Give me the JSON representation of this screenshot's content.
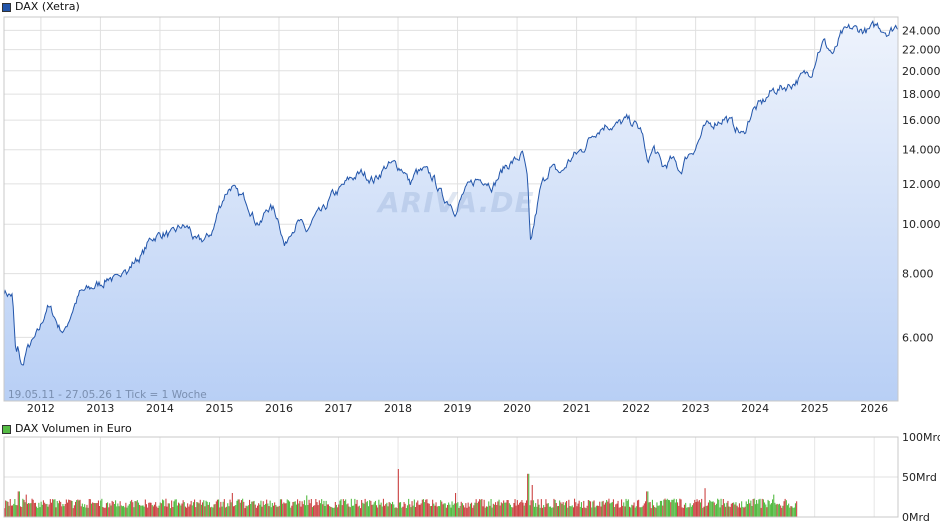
{
  "chart_data": [
    {
      "type": "area",
      "legend": "DAX (Xetra)",
      "range_label": "19.05.11 - 27.05.26   1 Tick = 1 Woche",
      "watermark": "ARIVA.DE",
      "x_ticks": [
        "2012",
        "2013",
        "2014",
        "2015",
        "2016",
        "2017",
        "2018",
        "2019",
        "2020",
        "2021",
        "2022",
        "2023",
        "2024",
        "2025",
        "2026"
      ],
      "y_ticks": [
        {
          "value": 6000,
          "label": "6.000"
        },
        {
          "value": 8000,
          "label": "8.000"
        },
        {
          "value": 10000,
          "label": "10.000"
        },
        {
          "value": 12000,
          "label": "12.000"
        },
        {
          "value": 14000,
          "label": "14.000"
        },
        {
          "value": 16000,
          "label": "16.000"
        },
        {
          "value": 18000,
          "label": "18.000"
        },
        {
          "value": 20000,
          "label": "20.000"
        },
        {
          "value": 22000,
          "label": "22.000"
        },
        {
          "value": 24000,
          "label": "24.000"
        }
      ],
      "y_scale": "log",
      "ylim": [
        4500,
        25500
      ],
      "xlim": [
        2011.38,
        2026.4
      ],
      "grid": true,
      "colors": {
        "line": "#2255aa",
        "fill_top": "#eef3fc",
        "fill_bottom": "#b8cff5",
        "legend": "#2255aa"
      },
      "series": [
        {
          "x": [
            2011.38,
            2011.45,
            2011.52,
            2011.58,
            2011.62,
            2011.68,
            2011.75,
            2011.82,
            2011.88,
            2011.95,
            2012.0,
            2012.1,
            2012.2,
            2012.3,
            2012.4,
            2012.45,
            2012.55,
            2012.65,
            2012.75,
            2012.85,
            2012.95,
            2013.05,
            2013.15,
            2013.3,
            2013.4,
            2013.45,
            2013.55,
            2013.7,
            2013.85,
            2013.95,
            2014.05,
            2014.2,
            2014.35,
            2014.5,
            2014.6,
            2014.8,
            2014.9,
            2015.0,
            2015.1,
            2015.2,
            2015.3,
            2015.45,
            2015.6,
            2015.7,
            2015.8,
            2015.9,
            2016.0,
            2016.1,
            2016.2,
            2016.35,
            2016.45,
            2016.6,
            2016.75,
            2016.9,
            2017.0,
            2017.2,
            2017.4,
            2017.6,
            2017.8,
            2017.95,
            2018.1,
            2018.2,
            2018.3,
            2018.45,
            2018.6,
            2018.75,
            2018.9,
            2018.98,
            2019.1,
            2019.3,
            2019.45,
            2019.6,
            2019.8,
            2019.95,
            2020.1,
            2020.18,
            2020.22,
            2020.3,
            2020.4,
            2020.55,
            2020.75,
            2020.85,
            2020.95,
            2021.1,
            2021.3,
            2021.5,
            2021.65,
            2021.85,
            2021.95,
            2022.1,
            2022.18,
            2022.3,
            2022.45,
            2022.6,
            2022.75,
            2022.85,
            2023.0,
            2023.15,
            2023.35,
            2023.5,
            2023.65,
            2023.8,
            2023.95,
            2024.1,
            2024.3,
            2024.45,
            2024.6,
            2024.8,
            2024.95,
            2025.05,
            2025.15,
            2025.25,
            2025.32,
            2025.45,
            2025.6,
            2025.75,
            2025.9,
            2026.05,
            2026.15,
            2026.25,
            2026.35,
            2026.4
          ],
          "values": [
            7400,
            7300,
            7250,
            5500,
            5700,
            5200,
            5600,
            5800,
            5900,
            6100,
            6300,
            6900,
            6700,
            6300,
            6150,
            6400,
            6900,
            7300,
            7400,
            7500,
            7600,
            7700,
            7900,
            7700,
            8400,
            8050,
            8400,
            8700,
            9400,
            9500,
            9600,
            9500,
            9900,
            9800,
            9200,
            9400,
            9800,
            10800,
            11500,
            11900,
            11400,
            11200,
            10200,
            10000,
            10800,
            10700,
            10200,
            9000,
            9800,
            10100,
            9600,
            10300,
            10600,
            11400,
            11600,
            12300,
            12600,
            12200,
            13000,
            13100,
            12800,
            12000,
            12600,
            12700,
            12300,
            11300,
            11000,
            10600,
            11500,
            12200,
            12300,
            11900,
            13000,
            13300,
            13700,
            12000,
            9000,
            10200,
            11800,
            12900,
            12600,
            13200,
            13600,
            14000,
            15200,
            15700,
            15600,
            16000,
            15800,
            15200,
            13200,
            14100,
            12900,
            13400,
            12700,
            13600,
            14200,
            15400,
            15900,
            16200,
            15600,
            14900,
            16700,
            17200,
            18300,
            18500,
            18800,
            19500,
            20000,
            21800,
            22800,
            22000,
            21500,
            23500,
            24200,
            24100,
            23900,
            24600,
            24200,
            23800,
            24400,
            24600
          ],
          "noise": 0.018
        }
      ]
    },
    {
      "type": "bar",
      "legend": "DAX Volumen in Euro",
      "y_ticks": [
        {
          "value": 0,
          "label": "0Mrd"
        },
        {
          "value": 50,
          "label": "50Mrd"
        },
        {
          "value": 100,
          "label": "100Mrd"
        }
      ],
      "ylim": [
        0,
        100
      ],
      "xlim": [
        2011.38,
        2026.4
      ],
      "colors": {
        "up": "#55bb44",
        "down": "#cc4444",
        "legend": "#55bb44"
      },
      "x_end_data": 2024.7,
      "base_level_mrd": 17,
      "spikes": [
        {
          "x": 2011.62,
          "value": 32
        },
        {
          "x": 2011.75,
          "value": 28
        },
        {
          "x": 2015.2,
          "value": 30
        },
        {
          "x": 2016.45,
          "value": 27
        },
        {
          "x": 2018.0,
          "value": 60
        },
        {
          "x": 2018.95,
          "value": 30
        },
        {
          "x": 2020.18,
          "value": 54
        },
        {
          "x": 2020.25,
          "value": 40
        },
        {
          "x": 2022.18,
          "value": 32
        },
        {
          "x": 2023.15,
          "value": 36
        },
        {
          "x": 2024.3,
          "value": 28
        }
      ]
    }
  ]
}
